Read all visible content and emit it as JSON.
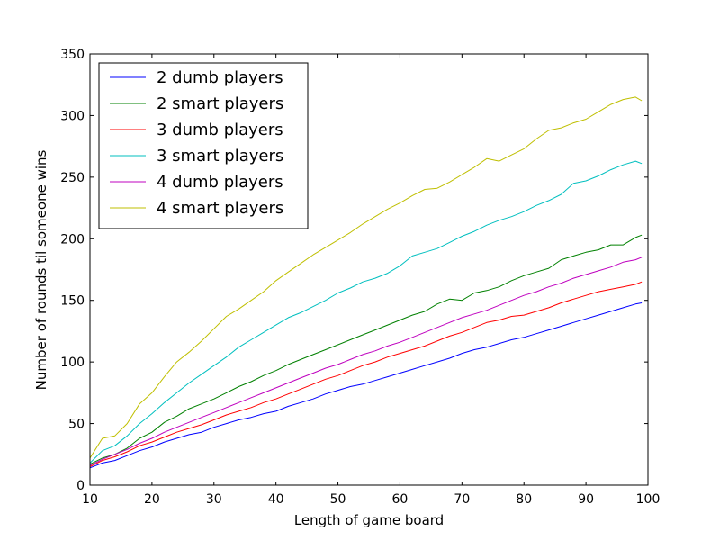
{
  "chart_data": {
    "type": "line",
    "title": "",
    "xlabel": "Length of game board",
    "ylabel": "Number of rounds til someone wins",
    "xlim": [
      10,
      100
    ],
    "ylim": [
      0,
      350
    ],
    "xticks": [
      "10",
      "20",
      "30",
      "40",
      "50",
      "60",
      "70",
      "80",
      "90",
      "100"
    ],
    "yticks": [
      "0",
      "50",
      "100",
      "150",
      "200",
      "250",
      "300",
      "350"
    ],
    "grid": false,
    "legend_position": "top-left",
    "x": [
      10,
      12,
      14,
      16,
      18,
      20,
      22,
      24,
      26,
      28,
      30,
      32,
      34,
      36,
      38,
      40,
      42,
      44,
      46,
      48,
      50,
      52,
      54,
      56,
      58,
      60,
      62,
      64,
      66,
      68,
      70,
      72,
      74,
      76,
      78,
      80,
      82,
      84,
      86,
      88,
      90,
      92,
      94,
      96,
      98,
      99
    ],
    "series": [
      {
        "name": "2 dumb players",
        "color": "#0000ff",
        "values": [
          14,
          18,
          20,
          24,
          28,
          31,
          35,
          38,
          41,
          43,
          47,
          50,
          53,
          55,
          58,
          60,
          64,
          67,
          70,
          74,
          77,
          80,
          82,
          85,
          88,
          91,
          94,
          97,
          100,
          103,
          107,
          110,
          112,
          115,
          118,
          120,
          123,
          126,
          129,
          132,
          135,
          138,
          141,
          144,
          147,
          148
        ]
      },
      {
        "name": "2 smart players",
        "color": "#008000",
        "values": [
          17,
          22,
          25,
          30,
          38,
          43,
          51,
          56,
          62,
          66,
          70,
          75,
          80,
          84,
          89,
          93,
          98,
          102,
          106,
          110,
          114,
          118,
          122,
          126,
          130,
          134,
          138,
          141,
          147,
          151,
          150,
          156,
          158,
          161,
          166,
          170,
          173,
          176,
          183,
          186,
          189,
          191,
          195,
          195,
          201,
          203
        ]
      },
      {
        "name": "3 dumb players",
        "color": "#ff0000",
        "values": [
          15,
          20,
          23,
          27,
          32,
          35,
          39,
          43,
          46,
          49,
          53,
          57,
          60,
          63,
          67,
          70,
          74,
          78,
          82,
          86,
          89,
          93,
          97,
          100,
          104,
          107,
          110,
          113,
          117,
          121,
          124,
          128,
          132,
          134,
          137,
          138,
          141,
          144,
          148,
          151,
          154,
          157,
          159,
          161,
          163,
          165
        ]
      },
      {
        "name": "3 smart players",
        "color": "#00bfbf",
        "values": [
          18,
          28,
          32,
          40,
          50,
          58,
          67,
          75,
          83,
          90,
          97,
          104,
          112,
          118,
          124,
          130,
          136,
          140,
          145,
          150,
          156,
          160,
          165,
          168,
          172,
          178,
          186,
          189,
          192,
          197,
          202,
          206,
          211,
          215,
          218,
          222,
          227,
          231,
          236,
          245,
          247,
          251,
          256,
          260,
          263,
          261
        ]
      },
      {
        "name": "4 dumb players",
        "color": "#bf00bf",
        "values": [
          16,
          21,
          25,
          29,
          34,
          38,
          43,
          47,
          51,
          55,
          59,
          63,
          67,
          71,
          75,
          79,
          83,
          87,
          91,
          95,
          98,
          102,
          106,
          109,
          113,
          116,
          120,
          124,
          128,
          132,
          136,
          139,
          142,
          146,
          150,
          154,
          157,
          161,
          164,
          168,
          171,
          174,
          177,
          181,
          183,
          185
        ]
      },
      {
        "name": "4 smart players",
        "color": "#bfbf00",
        "values": [
          22,
          38,
          40,
          50,
          66,
          75,
          88,
          100,
          108,
          117,
          127,
          137,
          143,
          150,
          157,
          166,
          173,
          180,
          187,
          193,
          199,
          205,
          212,
          218,
          224,
          229,
          235,
          240,
          241,
          246,
          252,
          258,
          265,
          263,
          268,
          273,
          281,
          288,
          290,
          294,
          297,
          303,
          309,
          313,
          315,
          312
        ]
      }
    ]
  }
}
